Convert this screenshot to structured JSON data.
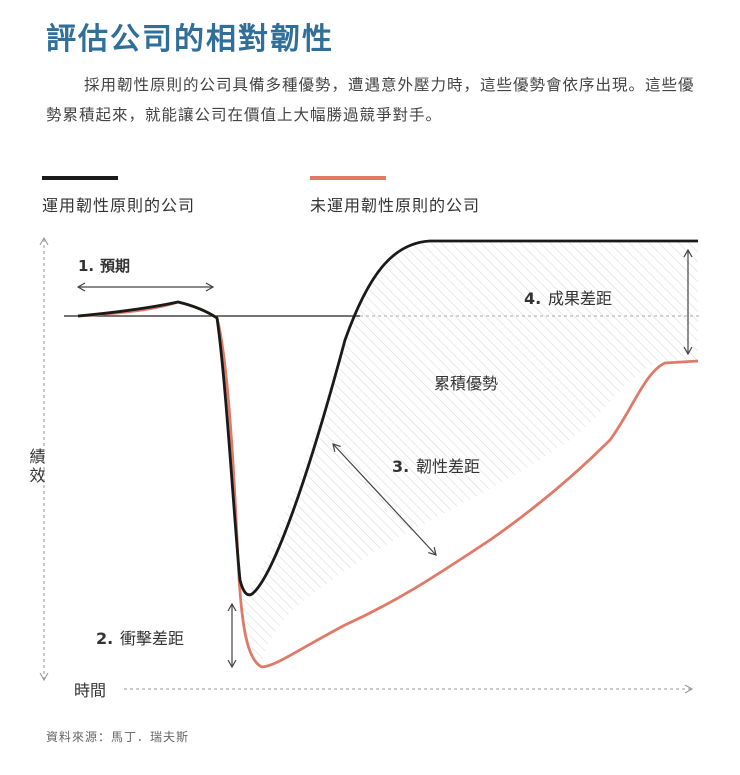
{
  "header": {
    "title": "評估公司的相對韌性",
    "intro": "採用韌性原則的公司具備多種優勢，遭遇意外壓力時，這些優勢會依序出現。這些優勢累積起來，就能讓公司在價值上大幅勝過競爭對手。"
  },
  "chart_data": {
    "type": "line",
    "title": "",
    "xlabel": "時間",
    "ylabel": "績效",
    "axis_values_shown": false,
    "series": [
      {
        "name": "運用韌性原則的公司",
        "color": "#1a1a1a"
      },
      {
        "name": "未運用韌性原則的公司",
        "color": "#e07a68"
      }
    ],
    "annotations": [
      {
        "number": "1.",
        "text": "預期"
      },
      {
        "number": "2.",
        "text": "衝擊差距"
      },
      {
        "number": "3.",
        "text": "韌性差距"
      },
      {
        "number": "4.",
        "text": "成果差距"
      }
    ],
    "area_label": "累積優勢",
    "baseline": "dashed"
  },
  "colors": {
    "title": "#2f6f9a",
    "resilient": "#1a1a1a",
    "non_resilient": "#e07a68",
    "axis": "#999999"
  },
  "footer": {
    "source": "資料來源：馬丁．瑞夫斯"
  }
}
